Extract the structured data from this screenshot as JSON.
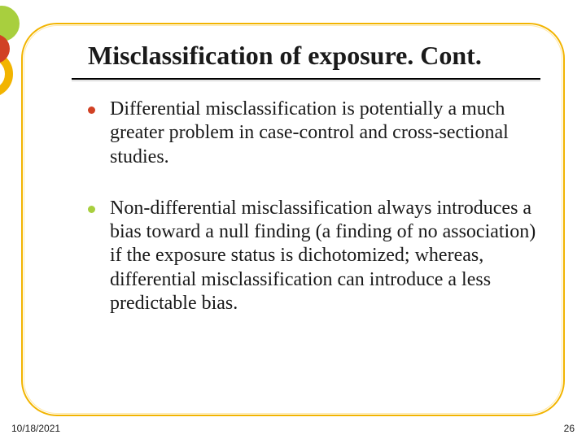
{
  "title": "Misclassification of exposure. Cont.",
  "title_fontsize": 32,
  "title_color": "#1a1a1a",
  "rule_color": "#000000",
  "bullets": [
    {
      "text": "Differential misclassification is potentially a much greater problem in case-control and cross-sectional studies.",
      "dot_color": "#d14124"
    },
    {
      "text": "Non-differential misclassification always introduces a bias toward a null finding (a finding of no association) if the exposure status is dichotomized; whereas, differential misclassification can introduce a less predictable bias.",
      "dot_color": "#a8cf3e"
    }
  ],
  "body_fontsize": 24,
  "body_color": "#1a1a1a",
  "frame": {
    "border_color": "#f2b400",
    "inner_color": "#ffe9a8",
    "radius": 44
  },
  "accents": {
    "green": "#a8cf3e",
    "red": "#d14124",
    "yellow": "#f2b400"
  },
  "footer": {
    "date": "10/18/2021",
    "page": "26",
    "fontsize": 12
  },
  "background_color": "#ffffff"
}
